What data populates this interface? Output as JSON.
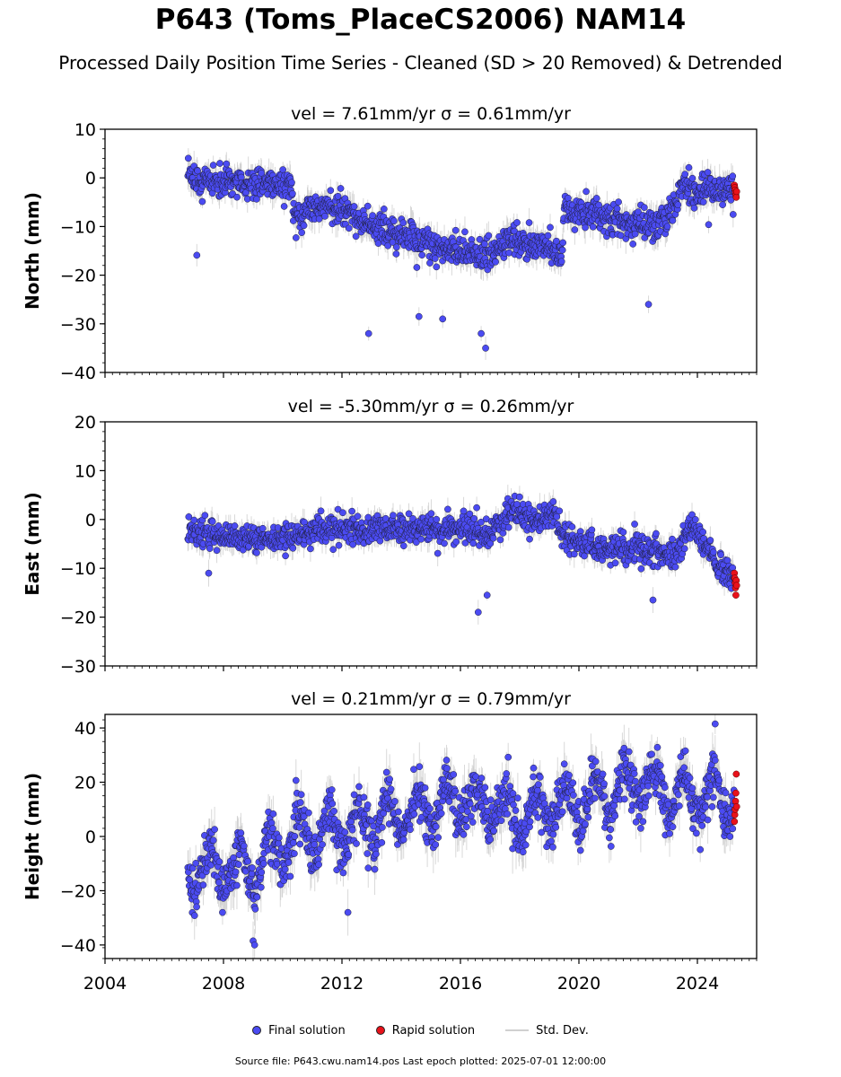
{
  "figure": {
    "title": "P643 (Toms_PlaceCS2006) NAM14",
    "subtitle": "Processed Daily Position Time Series - Cleaned (SD > 20 Removed) & Detrended",
    "footer": "Source file: P643.cwu.nam14.pos  Last epoch plotted: 2025-07-01 12:00:00"
  },
  "legend": {
    "final": "Final solution",
    "rapid": "Rapid solution",
    "std": "Std. Dev."
  },
  "colors": {
    "final": "#4b4bf2",
    "rapid": "#e8121b",
    "std": "#c9c9c9",
    "edge": "#1f1f3a"
  },
  "chart_data": [
    {
      "type": "scatter",
      "title": "vel = 7.61mm/yr   σ = 0.61mm/yr",
      "ylabel": "North (mm)",
      "xlim": [
        2004,
        2026
      ],
      "ylim": [
        -40,
        10
      ],
      "yticks": [
        -40,
        -30,
        -20,
        -10,
        0,
        10
      ],
      "xticks": [
        2004,
        2008,
        2012,
        2016,
        2020,
        2024
      ],
      "x_range_final": [
        2006.8,
        2025.25
      ],
      "x_range_rapid": [
        2025.25,
        2025.5
      ],
      "trend": [
        [
          2006.8,
          -0.5
        ],
        [
          2010.3,
          -1.5
        ],
        [
          2010.35,
          -8
        ],
        [
          2011.5,
          -5
        ],
        [
          2013.0,
          -10
        ],
        [
          2015.0,
          -14
        ],
        [
          2017.0,
          -16
        ],
        [
          2017.4,
          -13
        ],
        [
          2019.0,
          -14
        ],
        [
          2019.45,
          -16
        ],
        [
          2019.5,
          -7
        ],
        [
          2021.0,
          -8.5
        ],
        [
          2022.5,
          -10
        ],
        [
          2023.0,
          -8
        ],
        [
          2023.5,
          -2.5
        ],
        [
          2025.25,
          -2.5
        ]
      ],
      "scatter_sd": 1.6,
      "outliers": [
        [
          2007.1,
          -15.9
        ],
        [
          2012.9,
          -32
        ],
        [
          2014.6,
          -28.5
        ],
        [
          2015.4,
          -29
        ],
        [
          2016.7,
          -32
        ],
        [
          2016.85,
          -35
        ],
        [
          2022.35,
          -26
        ]
      ],
      "rapid_values": [
        -1.5,
        -2,
        -2.5,
        -3,
        -3.5,
        -4,
        -2.8
      ]
    },
    {
      "type": "scatter",
      "title": "vel = -5.30mm/yr   σ = 0.26mm/yr",
      "ylabel": "East (mm)",
      "xlim": [
        2004,
        2026
      ],
      "ylim": [
        -30,
        20
      ],
      "yticks": [
        -30,
        -20,
        -10,
        0,
        10,
        20
      ],
      "xticks": [
        2004,
        2008,
        2012,
        2016,
        2020,
        2024
      ],
      "x_range_final": [
        2006.8,
        2025.25
      ],
      "x_range_rapid": [
        2025.25,
        2025.5
      ],
      "trend": [
        [
          2006.8,
          -2.5
        ],
        [
          2009.0,
          -4
        ],
        [
          2010.0,
          -4
        ],
        [
          2011.0,
          -2
        ],
        [
          2013.0,
          -2
        ],
        [
          2016.0,
          -2
        ],
        [
          2017.0,
          -3
        ],
        [
          2017.7,
          2
        ],
        [
          2018.5,
          -0.5
        ],
        [
          2019.2,
          1
        ],
        [
          2019.5,
          -4
        ],
        [
          2021.0,
          -6
        ],
        [
          2022.5,
          -6
        ],
        [
          2023.2,
          -8
        ],
        [
          2023.8,
          -1
        ],
        [
          2024.5,
          -8
        ],
        [
          2025.25,
          -12
        ]
      ],
      "scatter_sd": 1.4,
      "outliers": [
        [
          2016.6,
          -19
        ],
        [
          2016.9,
          -15.5
        ],
        [
          2022.5,
          -16.5
        ],
        [
          2007.5,
          -11
        ]
      ],
      "rapid_values": [
        -11,
        -12,
        -13,
        -14,
        -15.5,
        -12.5,
        -13.5
      ]
    },
    {
      "type": "scatter",
      "title": "vel = 0.21mm/yr   σ = 0.79mm/yr",
      "ylabel": "Height (mm)",
      "xlim": [
        2004,
        2026
      ],
      "ylim": [
        -45,
        45
      ],
      "yticks": [
        -40,
        -20,
        0,
        20,
        40
      ],
      "xticks": [
        2004,
        2008,
        2012,
        2016,
        2020,
        2024
      ],
      "xticklabels": [
        "2004",
        "2008",
        "2012",
        "2016",
        "2020",
        "2024"
      ],
      "x_range_final": [
        2006.8,
        2025.25
      ],
      "x_range_rapid": [
        2025.25,
        2025.5
      ],
      "trend": [
        [
          2006.8,
          -12
        ],
        [
          2009.0,
          -12
        ],
        [
          2010.5,
          0
        ],
        [
          2012.0,
          3
        ],
        [
          2014.0,
          8
        ],
        [
          2016.0,
          12
        ],
        [
          2018.0,
          8
        ],
        [
          2020.0,
          12
        ],
        [
          2022.0,
          20
        ],
        [
          2023.0,
          15
        ],
        [
          2025.25,
          14
        ]
      ],
      "seasonal_amp": 8,
      "scatter_sd": 4.5,
      "outliers": [
        [
          2009.0,
          -38.5
        ],
        [
          2009.05,
          -40
        ],
        [
          2012.2,
          -28
        ],
        [
          2024.6,
          41.5
        ]
      ],
      "rapid_values": [
        5.5,
        8,
        10,
        13,
        16,
        23,
        11
      ]
    }
  ]
}
